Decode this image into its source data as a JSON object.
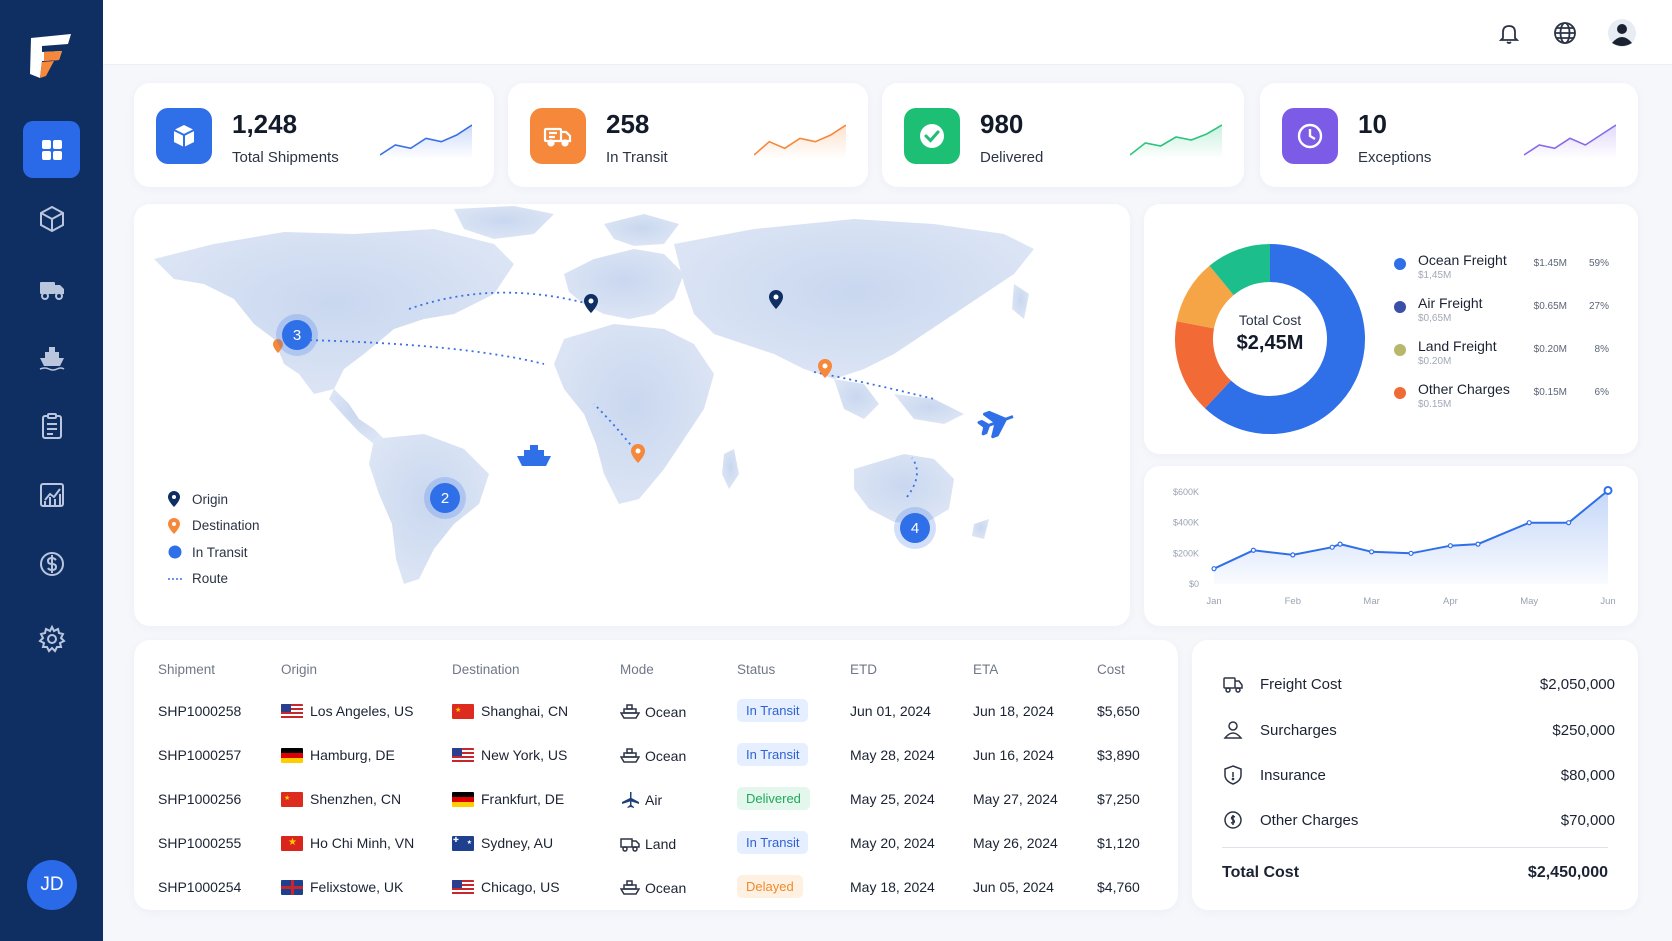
{
  "sidebar": {
    "items": [
      {
        "icon": "dashboard-icon",
        "active": true
      },
      {
        "icon": "package-icon"
      },
      {
        "icon": "truck-icon"
      },
      {
        "icon": "ship-icon"
      },
      {
        "icon": "clipboard-icon"
      },
      {
        "icon": "analytics-icon"
      },
      {
        "icon": "dollar-icon"
      },
      {
        "icon": "settings-icon"
      }
    ],
    "user_initials": "JD"
  },
  "kpis": [
    {
      "value": "1,248",
      "label": "Total Shipments",
      "color": "#2f6fe8",
      "icon": "cube-icon",
      "trend": [
        3,
        6,
        5,
        8,
        7,
        9,
        12
      ],
      "spark_color": "#3a6fe6"
    },
    {
      "value": "258",
      "label": "In Transit",
      "color": "#f5883a",
      "icon": "truck-icon",
      "trend": [
        2,
        6,
        4,
        7,
        6,
        8,
        11
      ],
      "spark_color": "#f5883a"
    },
    {
      "value": "980",
      "label": "Delivered",
      "color": "#1cbf74",
      "icon": "check-icon",
      "trend": [
        2,
        6,
        5,
        8,
        7,
        9,
        12
      ],
      "spark_color": "#2cc47f"
    },
    {
      "value": "10",
      "label": "Exceptions",
      "color": "#7c5be6",
      "icon": "clock-icon",
      "trend": [
        2,
        5,
        4,
        7,
        5,
        8,
        11
      ],
      "spark_color": "#8a6ae9"
    }
  ],
  "map": {
    "legend": [
      {
        "label": "Origin",
        "symbol": "origin-pin-icon"
      },
      {
        "label": "Destination",
        "symbol": "destination-pin-icon"
      },
      {
        "label": "In Transit",
        "symbol": "in-transit-dot-icon"
      },
      {
        "label": "Route",
        "symbol": "route-line-icon"
      }
    ],
    "clusters": [
      {
        "id": "north-america",
        "count": "3"
      },
      {
        "id": "south-america",
        "count": "2"
      },
      {
        "id": "australia",
        "count": "4"
      }
    ]
  },
  "cost_breakdown": {
    "center_label": "Total Cost",
    "center_value": "$2,45M",
    "items": [
      {
        "name": "Ocean Freight",
        "sub": "$1,45M",
        "amount": "$1.45M",
        "pct": "59%",
        "color": "#2f6fe8",
        "value": 59
      },
      {
        "name": "Air Freight",
        "sub": "$0,65M",
        "amount": "$0.65M",
        "pct": "27%",
        "color": "#3a4fa8",
        "value": 27
      },
      {
        "name": "Land Freight",
        "sub": "$0.20M",
        "amount": "$0.20M",
        "pct": "8%",
        "color": "#b7b86a",
        "value": 8
      },
      {
        "name": "Other Charges",
        "sub": "$0.15M",
        "amount": "$0.15M",
        "pct": "6%",
        "color": "#f06a35",
        "value": 6
      }
    ],
    "donut_segments": [
      {
        "name": "blue",
        "value": 62,
        "color": "#2f6fe8"
      },
      {
        "name": "orange-red",
        "value": 16,
        "color": "#f26a35"
      },
      {
        "name": "amber",
        "value": 11,
        "color": "#f5a546"
      },
      {
        "name": "teal",
        "value": 11,
        "color": "#1cbf8c"
      }
    ]
  },
  "chart_data": {
    "type": "area",
    "x": [
      "Jan",
      "Feb",
      "Mar",
      "Apr",
      "May",
      "Jun"
    ],
    "y_ticks": [
      "$600K",
      "$400K",
      "$200K",
      "$0"
    ],
    "ylim": [
      0,
      600000
    ],
    "points": [
      {
        "x": 0.0,
        "y": 100000
      },
      {
        "x": 0.5,
        "y": 220000
      },
      {
        "x": 1.0,
        "y": 190000
      },
      {
        "x": 1.5,
        "y": 240000
      },
      {
        "x": 1.6,
        "y": 260000
      },
      {
        "x": 2.0,
        "y": 210000
      },
      {
        "x": 2.5,
        "y": 200000
      },
      {
        "x": 3.0,
        "y": 250000
      },
      {
        "x": 3.35,
        "y": 260000
      },
      {
        "x": 4.0,
        "y": 400000
      },
      {
        "x": 4.5,
        "y": 400000
      },
      {
        "x": 5.0,
        "y": 610000
      }
    ],
    "color": "#2f6fe8"
  },
  "table": {
    "headers": [
      "Shipment",
      "Origin",
      "Destination",
      "Mode",
      "Status",
      "ETD",
      "ETA",
      "Cost"
    ],
    "rows": [
      {
        "id": "SHP1000258",
        "origin": "Los Angeles, US",
        "origin_flag": "us",
        "dest": "Shanghai, CN",
        "dest_flag": "cn",
        "mode": "Ocean",
        "mode_icon": "ship-icon",
        "status": "In Transit",
        "status_type": "transit",
        "etd": "Jun 01, 2024",
        "eta": "Jun 18, 2024",
        "cost": "$5,650"
      },
      {
        "id": "SHP1000257",
        "origin": "Hamburg, DE",
        "origin_flag": "de",
        "dest": "New York, US",
        "dest_flag": "us",
        "mode": "Ocean",
        "mode_icon": "ship-icon",
        "status": "In Transit",
        "status_type": "transit",
        "etd": "May 28, 2024",
        "eta": "Jun 16, 2024",
        "cost": "$3,890"
      },
      {
        "id": "SHP1000256",
        "origin": "Shenzhen, CN",
        "origin_flag": "cn",
        "dest": "Frankfurt, DE",
        "dest_flag": "de",
        "mode": "Air",
        "mode_icon": "plane-icon",
        "status": "Delivered",
        "status_type": "delivered",
        "etd": "May 25, 2024",
        "eta": "May 27, 2024",
        "cost": "$7,250"
      },
      {
        "id": "SHP1000255",
        "origin": "Ho Chi Minh, VN",
        "origin_flag": "vn",
        "dest": "Sydney, AU",
        "dest_flag": "au",
        "mode": "Land",
        "mode_icon": "truck-icon",
        "status": "In Transit",
        "status_type": "transit",
        "etd": "May 20, 2024",
        "eta": "May 26, 2024",
        "cost": "$1,120"
      },
      {
        "id": "SHP1000254",
        "origin": "Felixstowe, UK",
        "origin_flag": "uk",
        "dest": "Chicago, US",
        "dest_flag": "us",
        "mode": "Ocean",
        "mode_icon": "ship-icon",
        "status": "Delayed",
        "status_type": "delayed",
        "etd": "May 18, 2024",
        "eta": "Jun 05, 2024",
        "cost": "$4,760"
      }
    ]
  },
  "cost_summary": {
    "items": [
      {
        "label": "Freight Cost",
        "value": "$2,050,000",
        "icon": "truck-outline-icon"
      },
      {
        "label": "Surcharges",
        "value": "$250,000",
        "icon": "person-outline-icon"
      },
      {
        "label": "Insurance",
        "value": "$80,000",
        "icon": "shield-icon"
      },
      {
        "label": "Other Charges",
        "value": "$70,000",
        "icon": "coin-icon"
      }
    ],
    "total_label": "Total Cost",
    "total_value": "$2,450,000"
  }
}
